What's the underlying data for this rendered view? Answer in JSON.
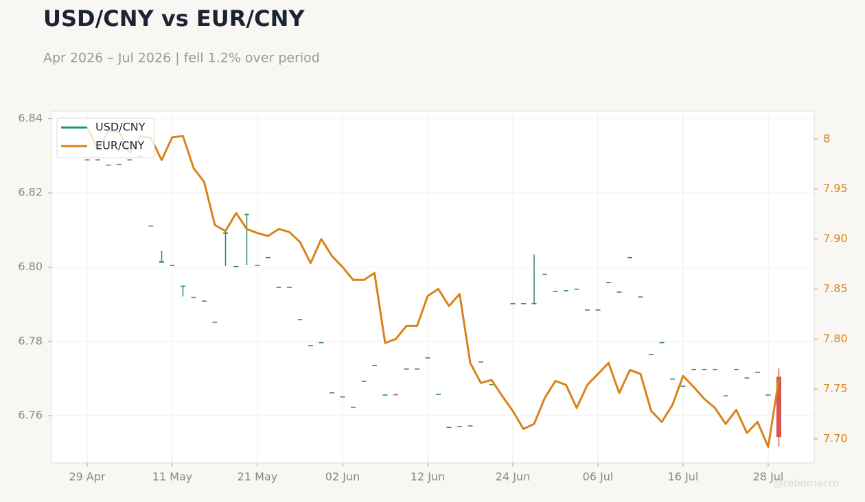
{
  "chart_data": {
    "type": "candlestick-line",
    "title": "USD/CNY vs EUR/CNY",
    "subtitle": "Apr 2026 – Jul 2026 | fell 1.2% over period",
    "watermark": "@robomacro",
    "categories": [
      "29 Apr",
      "30 Apr",
      "01 May",
      "04 May",
      "05 May",
      "06 May",
      "07 May",
      "08 May",
      "11 May",
      "12 May",
      "13 May",
      "14 May",
      "15 May",
      "18 May",
      "19 May",
      "20 May",
      "21 May",
      "22 May",
      "25 May",
      "26 May",
      "27 May",
      "28 May",
      "29 May",
      "01 Jun",
      "02 Jun",
      "03 Jun",
      "04 Jun",
      "05 Jun",
      "08 Jun",
      "09 Jun",
      "10 Jun",
      "11 Jun",
      "12 Jun",
      "15 Jun",
      "16 Jun",
      "17 Jun",
      "18 Jun",
      "19 Jun",
      "22 Jun",
      "23 Jun",
      "24 Jun",
      "25 Jun",
      "26 Jun",
      "29 Jun",
      "30 Jun",
      "01 Jul",
      "02 Jul",
      "03 Jul",
      "06 Jul",
      "07 Jul",
      "08 Jul",
      "09 Jul",
      "10 Jul",
      "13 Jul",
      "14 Jul",
      "15 Jul",
      "16 Jul",
      "17 Jul",
      "20 Jul",
      "21 Jul",
      "22 Jul",
      "23 Jul",
      "24 Jul",
      "27 Jul",
      "28 Jul",
      "29 Jul"
    ],
    "xticks": [
      "29 Apr",
      "11 May",
      "21 May",
      "02 Jun",
      "12 Jun",
      "24 Jun",
      "06 Jul",
      "16 Jul",
      "28 Jul"
    ],
    "series": [
      {
        "name": "USD/CNY",
        "kind": "candlestick",
        "axis": "y",
        "color": "#1a9a6a",
        "up_color": "#2e8b57",
        "down_color": "#d9534f",
        "open": [
          6.8288,
          6.8288,
          6.8274,
          6.8276,
          6.8288,
          6.8298,
          6.811,
          6.8012,
          6.8004,
          6.7948,
          6.7918,
          6.7908,
          6.7851,
          6.809,
          6.8001,
          6.8141,
          6.8004,
          6.8025,
          6.7945,
          6.7945,
          6.7858,
          6.7788,
          6.7796,
          6.7661,
          6.765,
          6.7622,
          6.7692,
          6.7735,
          6.7655,
          6.7658,
          6.7725,
          6.7725,
          6.7755,
          6.7657,
          6.7568,
          6.757,
          6.7572,
          6.7744,
          6.7683,
          null,
          6.7901,
          6.7901,
          6.7901,
          6.798,
          6.7934,
          6.7936,
          6.794,
          6.7884,
          6.7884,
          6.7958,
          6.7932,
          6.8025,
          6.7919,
          6.7764,
          6.7796,
          6.7698,
          6.7679,
          6.7724,
          6.7724,
          6.7724,
          6.7653,
          6.7724,
          6.7701,
          6.7716,
          6.7655,
          6.7705
        ],
        "high": [
          6.829,
          6.829,
          6.8276,
          6.8278,
          6.829,
          6.83,
          6.8112,
          6.8044,
          6.8006,
          6.795,
          6.792,
          6.791,
          6.7853,
          6.8096,
          6.8003,
          6.8145,
          6.8006,
          6.8027,
          6.7947,
          6.7947,
          6.786,
          6.779,
          6.7798,
          6.7663,
          6.7652,
          6.7624,
          6.7694,
          6.7737,
          6.7657,
          6.7658,
          6.7727,
          6.7727,
          6.7757,
          6.7659,
          6.757,
          6.7572,
          6.7574,
          6.7746,
          6.7685,
          null,
          6.7903,
          6.7903,
          6.8034,
          6.7982,
          6.7936,
          6.7938,
          6.7942,
          6.7886,
          6.7886,
          6.796,
          6.7934,
          6.8027,
          6.7921,
          6.7766,
          6.7798,
          6.77,
          6.7681,
          6.7726,
          6.7726,
          6.7726,
          6.7655,
          6.7726,
          6.7703,
          6.7718,
          6.7657,
          6.7727
        ],
        "low": [
          6.8288,
          6.8288,
          6.8274,
          6.8276,
          6.8288,
          6.8298,
          6.811,
          6.8012,
          6.8004,
          6.7921,
          6.7918,
          6.7908,
          6.7851,
          6.8003,
          6.8001,
          6.8005,
          6.8004,
          6.8025,
          6.7945,
          6.7945,
          6.7858,
          6.7788,
          6.7796,
          6.7661,
          6.765,
          6.7622,
          6.7692,
          6.7735,
          6.7655,
          6.7655,
          6.7725,
          6.7725,
          6.7755,
          6.7657,
          6.7568,
          6.757,
          6.7572,
          6.7744,
          6.7683,
          null,
          6.7901,
          6.7901,
          6.7901,
          6.798,
          6.7934,
          6.7936,
          6.794,
          6.7884,
          6.7884,
          6.7958,
          6.7932,
          6.8025,
          6.7919,
          6.7764,
          6.7796,
          6.7698,
          6.7679,
          6.7724,
          6.7724,
          6.7724,
          6.7653,
          6.7724,
          6.7701,
          6.7716,
          6.7655,
          6.7517
        ],
        "values": [
          6.829,
          6.829,
          6.8276,
          6.8278,
          6.829,
          6.83,
          6.8112,
          6.8016,
          6.8006,
          6.795,
          6.792,
          6.791,
          6.7853,
          6.8093,
          6.8003,
          6.8143,
          6.8006,
          6.8027,
          6.7947,
          6.7947,
          6.786,
          6.779,
          6.7798,
          6.7663,
          6.7652,
          6.7624,
          6.7694,
          6.7737,
          6.7657,
          6.7655,
          6.7727,
          6.7727,
          6.7757,
          6.7659,
          6.757,
          6.7572,
          6.7574,
          6.7746,
          6.7685,
          null,
          6.7903,
          6.7903,
          6.7903,
          6.7982,
          6.7936,
          6.7938,
          6.7942,
          6.7886,
          6.7886,
          6.796,
          6.7934,
          6.8027,
          6.7921,
          6.7766,
          6.7798,
          6.77,
          6.7681,
          6.7726,
          6.7726,
          6.7726,
          6.7655,
          6.7726,
          6.7703,
          6.7718,
          6.7657,
          6.7543
        ]
      },
      {
        "name": "EUR/CNY",
        "kind": "line",
        "axis": "y2",
        "color": "#d98218",
        "values": [
          8.012,
          7.99,
          8.008,
          8.007,
          7.986,
          8.003,
          8.001,
          7.979,
          8.002,
          8.003,
          7.971,
          7.957,
          7.914,
          7.908,
          7.926,
          7.91,
          7.906,
          7.903,
          7.91,
          7.907,
          7.897,
          7.876,
          7.9,
          7.883,
          7.872,
          7.859,
          7.859,
          7.866,
          7.796,
          7.8,
          7.813,
          7.813,
          7.843,
          7.85,
          7.833,
          7.845,
          7.776,
          7.756,
          7.759,
          7.743,
          7.728,
          7.71,
          7.715,
          7.741,
          7.758,
          7.754,
          7.731,
          7.754,
          7.765,
          7.776,
          7.746,
          7.769,
          7.765,
          7.728,
          7.717,
          7.734,
          7.763,
          7.752,
          7.74,
          7.731,
          7.715,
          7.729,
          7.706,
          7.717,
          7.692,
          7.76
        ]
      }
    ],
    "ylim": [
      6.7473,
      6.842
    ],
    "yticks": [
      6.76,
      6.78,
      {
        "value": 6.8,
        "label": "6.80"
      },
      6.82,
      6.84
    ],
    "y2lim": [
      7.676,
      8.028
    ],
    "y2ticks": [
      {
        "value": 7.7,
        "label": "7.70"
      },
      7.75,
      {
        "value": 7.8,
        "label": "7.80"
      },
      7.85,
      {
        "value": 7.9,
        "label": "7.90"
      },
      7.95,
      8
    ],
    "grid": true,
    "legend": "upper left"
  }
}
